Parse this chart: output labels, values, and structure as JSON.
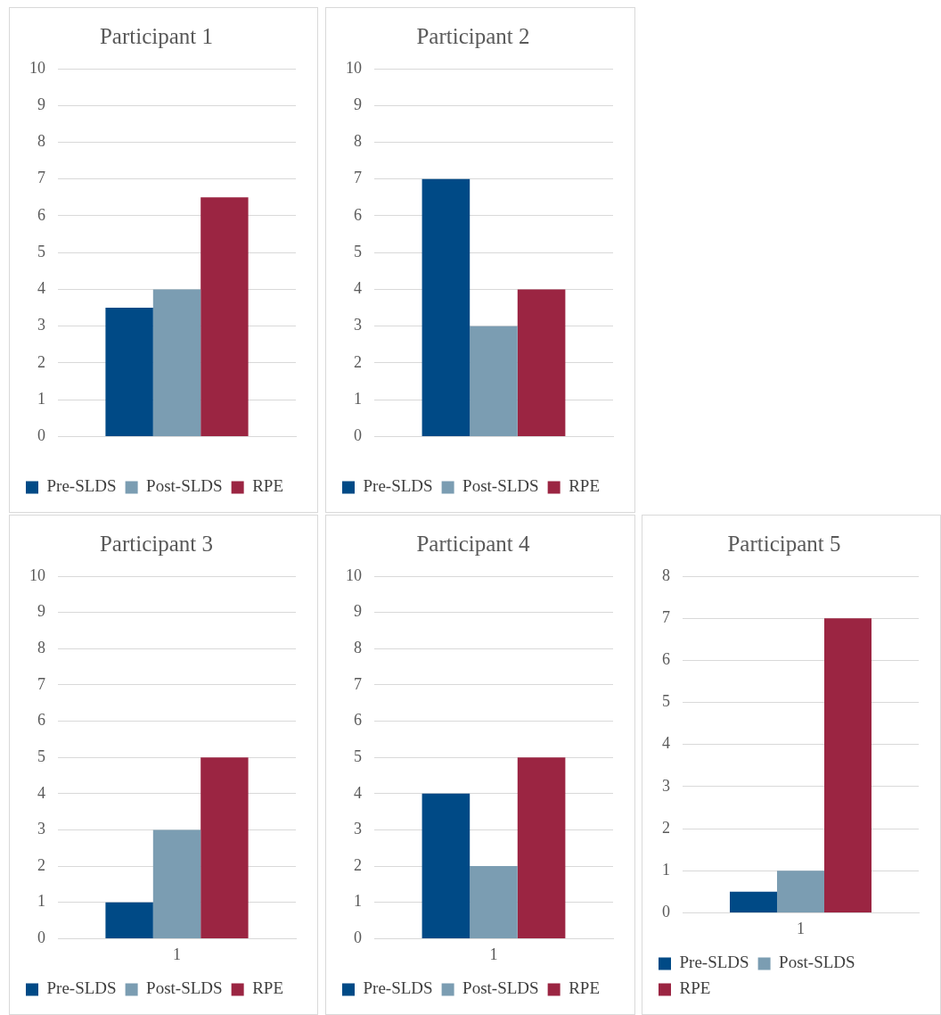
{
  "chart_data": [
    {
      "type": "bar",
      "title": "Participant 1",
      "categories": [
        null
      ],
      "series": [
        {
          "name": "Pre-SLDS",
          "color": "#004a86",
          "values": [
            3.5
          ]
        },
        {
          "name": "Post-SLDS",
          "color": "#7b9db2",
          "values": [
            4
          ]
        },
        {
          "name": "RPE",
          "color": "#9b2542",
          "values": [
            6.5
          ]
        }
      ],
      "ylim": [
        0,
        10
      ],
      "yticks": [
        0,
        1,
        2,
        3,
        4,
        5,
        6,
        7,
        8,
        9,
        10
      ],
      "grid": "y",
      "legend": "bottom"
    },
    {
      "type": "bar",
      "title": "Participant 2",
      "categories": [
        null
      ],
      "series": [
        {
          "name": "Pre-SLDS",
          "color": "#004a86",
          "values": [
            7
          ]
        },
        {
          "name": "Post-SLDS",
          "color": "#7b9db2",
          "values": [
            3
          ]
        },
        {
          "name": "RPE",
          "color": "#9b2542",
          "values": [
            4
          ]
        }
      ],
      "ylim": [
        0,
        10
      ],
      "yticks": [
        0,
        1,
        2,
        3,
        4,
        5,
        6,
        7,
        8,
        9,
        10
      ],
      "grid": "y",
      "legend": "bottom"
    },
    {
      "type": "bar",
      "title": "Participant 3",
      "categories": [
        "1"
      ],
      "series": [
        {
          "name": "Pre-SLDS",
          "color": "#004a86",
          "values": [
            1
          ]
        },
        {
          "name": "Post-SLDS",
          "color": "#7b9db2",
          "values": [
            3
          ]
        },
        {
          "name": "RPE",
          "color": "#9b2542",
          "values": [
            5
          ]
        }
      ],
      "ylim": [
        0,
        10
      ],
      "yticks": [
        0,
        1,
        2,
        3,
        4,
        5,
        6,
        7,
        8,
        9,
        10
      ],
      "grid": "y",
      "legend": "bottom"
    },
    {
      "type": "bar",
      "title": "Participant 4",
      "categories": [
        "1"
      ],
      "series": [
        {
          "name": "Pre-SLDS",
          "color": "#004a86",
          "values": [
            4
          ]
        },
        {
          "name": "Post-SLDS",
          "color": "#7b9db2",
          "values": [
            2
          ]
        },
        {
          "name": "RPE",
          "color": "#9b2542",
          "values": [
            5
          ]
        }
      ],
      "ylim": [
        0,
        10
      ],
      "yticks": [
        0,
        1,
        2,
        3,
        4,
        5,
        6,
        7,
        8,
        9,
        10
      ],
      "grid": "y",
      "legend": "bottom"
    },
    {
      "type": "bar",
      "title": "Participant 5",
      "categories": [
        "1"
      ],
      "series": [
        {
          "name": "Pre-SLDS",
          "color": "#004a86",
          "values": [
            0.5
          ]
        },
        {
          "name": "Post-SLDS",
          "color": "#7b9db2",
          "values": [
            1
          ]
        },
        {
          "name": "RPE",
          "color": "#9b2542",
          "values": [
            7
          ]
        }
      ],
      "ylim": [
        0,
        8
      ],
      "yticks": [
        0,
        1,
        2,
        3,
        4,
        5,
        6,
        7,
        8
      ],
      "grid": "y",
      "legend": "bottom"
    }
  ]
}
